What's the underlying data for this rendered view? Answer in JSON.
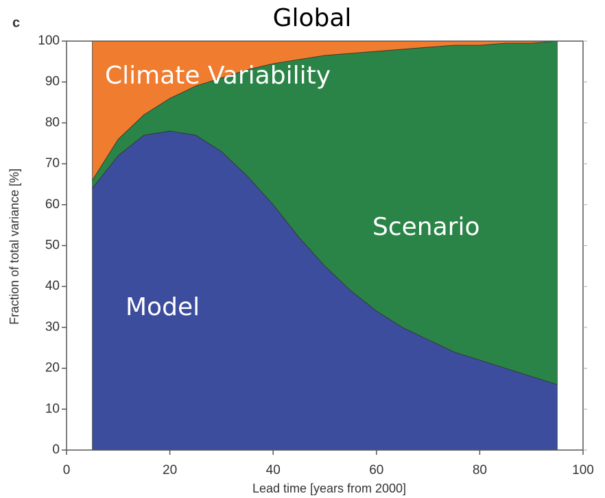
{
  "chart_data": {
    "type": "stacked_area",
    "title": "Global",
    "panel_label": "c",
    "xlabel": "Lead time  [years from 2000]",
    "ylabel": "Fraction of total variance  [%]",
    "x": [
      5,
      10,
      15,
      20,
      25,
      30,
      35,
      40,
      45,
      50,
      55,
      60,
      65,
      70,
      75,
      80,
      85,
      90,
      95
    ],
    "series": [
      {
        "name": "Model",
        "color": "#3d4d9d",
        "values": [
          64,
          72,
          77,
          78,
          77,
          73,
          67,
          60,
          52,
          45,
          39,
          34,
          30,
          27,
          24,
          22,
          20,
          18,
          16
        ]
      },
      {
        "name": "Scenario",
        "color": "#2a8447",
        "values": [
          2,
          4,
          5,
          8,
          12,
          18,
          26,
          34.5,
          43.5,
          51.5,
          58,
          63.5,
          68,
          71.5,
          75,
          77,
          79.5,
          81.5,
          84
        ]
      },
      {
        "name": "Climate Variability",
        "color": "#f07c2f",
        "values": [
          34,
          24,
          18,
          14,
          11,
          9,
          7,
          5.5,
          4.5,
          3.5,
          3,
          2.5,
          2,
          1.5,
          1,
          1,
          0.5,
          0.5,
          0
        ]
      }
    ],
    "xlim": [
      0,
      100
    ],
    "ylim": [
      0,
      100
    ],
    "xticks": [
      0,
      20,
      40,
      60,
      80,
      100
    ],
    "yticks": [
      0,
      10,
      20,
      30,
      40,
      50,
      60,
      70,
      80,
      90,
      100
    ]
  }
}
